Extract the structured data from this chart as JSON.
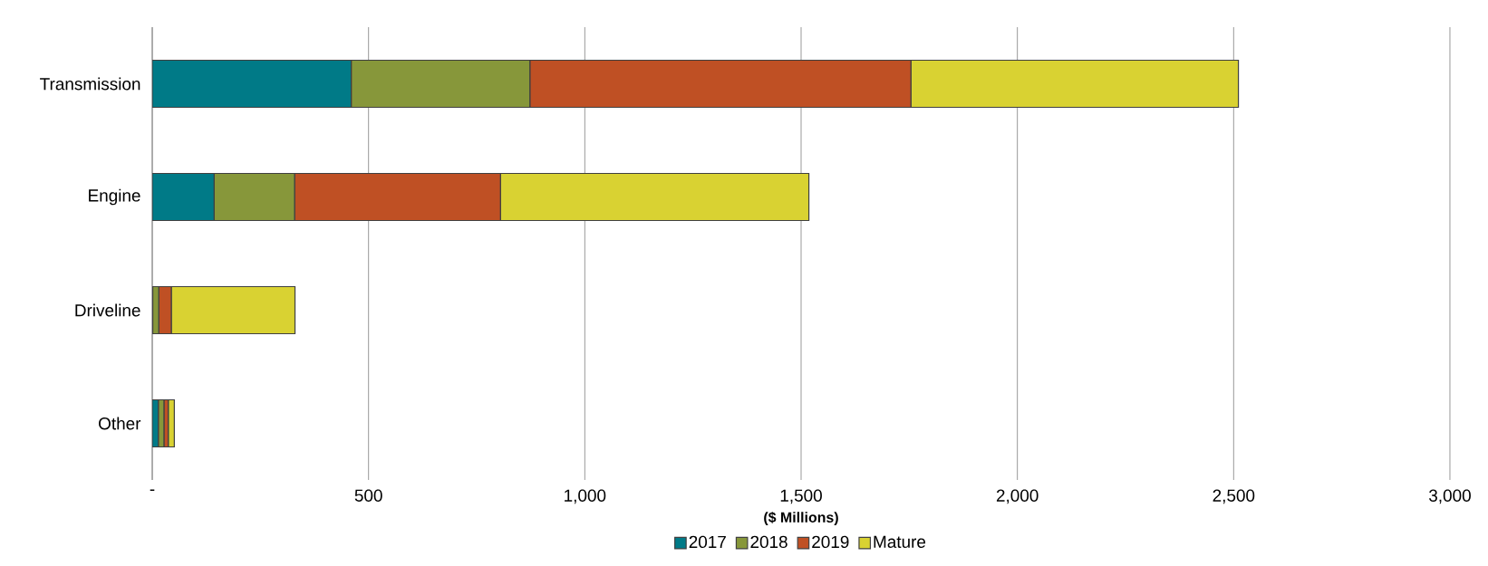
{
  "chart_data": {
    "type": "bar",
    "orientation": "horizontal",
    "stacked": true,
    "xlabel": "($ Millions)",
    "categories": [
      "Transmission",
      "Engine",
      "Driveline",
      "Other"
    ],
    "series": [
      {
        "name": "2017",
        "color": "#007a87",
        "values": [
          460,
          143,
          1,
          14
        ]
      },
      {
        "name": "2018",
        "color": "#87973a",
        "values": [
          413,
          186,
          14,
          13
        ]
      },
      {
        "name": "2019",
        "color": "#bf5024",
        "values": [
          881,
          476,
          29,
          10
        ]
      },
      {
        "name": "Mature",
        "color": "#d9d232",
        "values": [
          757,
          713,
          286,
          14
        ]
      }
    ],
    "xlim": [
      0,
      3000
    ],
    "xticks": [
      {
        "value": 0,
        "label": "-"
      },
      500,
      {
        "value": 1000,
        "label": "1,000"
      },
      {
        "value": 1500,
        "label": "1,500"
      },
      {
        "value": 2000,
        "label": "2,000"
      },
      {
        "value": 2500,
        "label": "2,500"
      },
      {
        "value": 3000,
        "label": "3,000"
      }
    ],
    "grid": "x",
    "legend": "bottom"
  }
}
